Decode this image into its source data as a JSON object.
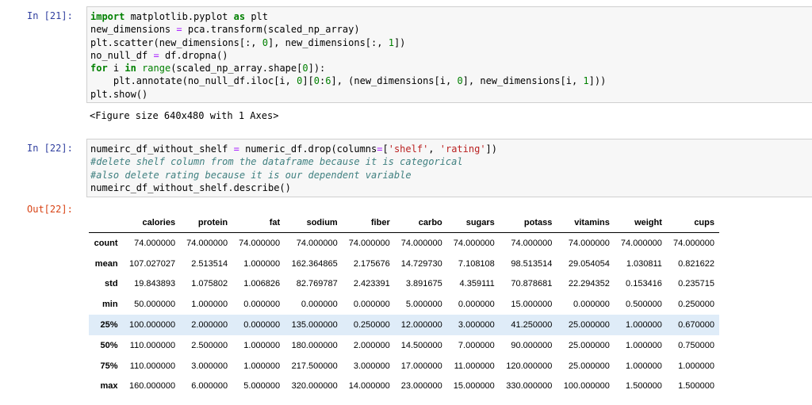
{
  "cells": [
    {
      "prompt": "In [21]:",
      "code": [
        [
          [
            "kw",
            "import"
          ],
          [
            "t",
            " matplotlib.pyplot "
          ],
          [
            "kw",
            "as"
          ],
          [
            "t",
            " plt"
          ]
        ],
        [
          [
            "t",
            "new_dimensions "
          ],
          [
            "op",
            "="
          ],
          [
            "t",
            " pca.transform(scaled_np_array)"
          ]
        ],
        [
          [
            "t",
            "plt.scatter(new_dimensions[:, "
          ],
          [
            "num",
            "0"
          ],
          [
            "t",
            "], new_dimensions[:, "
          ],
          [
            "num",
            "1"
          ],
          [
            "t",
            "])"
          ]
        ],
        [
          [
            "t",
            "no_null_df "
          ],
          [
            "op",
            "="
          ],
          [
            "t",
            " df.dropna()"
          ]
        ],
        [
          [
            "kw",
            "for"
          ],
          [
            "t",
            " i "
          ],
          [
            "kw",
            "in"
          ],
          [
            "t",
            " "
          ],
          [
            "bi",
            "range"
          ],
          [
            "t",
            "(scaled_np_array.shape["
          ],
          [
            "num",
            "0"
          ],
          [
            "t",
            "]):"
          ]
        ],
        [
          [
            "t",
            "    plt.annotate(no_null_df.iloc[i, "
          ],
          [
            "num",
            "0"
          ],
          [
            "t",
            "]["
          ],
          [
            "num",
            "0"
          ],
          [
            "t",
            ":"
          ],
          [
            "num",
            "6"
          ],
          [
            "t",
            "], (new_dimensions[i, "
          ],
          [
            "num",
            "0"
          ],
          [
            "t",
            "], new_dimensions[i, "
          ],
          [
            "num",
            "1"
          ],
          [
            "t",
            "]))"
          ]
        ],
        [
          [
            "t",
            "plt.show()"
          ]
        ]
      ],
      "output": "<Figure size 640x480 with 1 Axes>"
    },
    {
      "prompt": "In [22]:",
      "code": [
        [
          [
            "t",
            "numeirc_df_without_shelf "
          ],
          [
            "op",
            "="
          ],
          [
            "t",
            " numeric_df.drop(columns"
          ],
          [
            "op",
            "="
          ],
          [
            "t",
            "["
          ],
          [
            "str",
            "'shelf'"
          ],
          [
            "t",
            ", "
          ],
          [
            "str",
            "'rating'"
          ],
          [
            "t",
            "])"
          ]
        ],
        [
          [
            "cm",
            "#delete shelf column from the dataframe because it is categorical"
          ]
        ],
        [
          [
            "cm",
            "#also delete rating because it is our dependent variable"
          ]
        ],
        [
          [
            "t",
            "numeirc_df_without_shelf.describe()"
          ]
        ]
      ],
      "out_prompt": "Out[22]:"
    }
  ],
  "table": {
    "columns": [
      "calories",
      "protein",
      "fat",
      "sodium",
      "fiber",
      "carbo",
      "sugars",
      "potass",
      "vitamins",
      "weight",
      "cups"
    ],
    "highlighted_row": 4,
    "rows": [
      {
        "index": "count",
        "values": [
          "74.000000",
          "74.000000",
          "74.000000",
          "74.000000",
          "74.000000",
          "74.000000",
          "74.000000",
          "74.000000",
          "74.000000",
          "74.000000",
          "74.000000"
        ]
      },
      {
        "index": "mean",
        "values": [
          "107.027027",
          "2.513514",
          "1.000000",
          "162.364865",
          "2.175676",
          "14.729730",
          "7.108108",
          "98.513514",
          "29.054054",
          "1.030811",
          "0.821622"
        ]
      },
      {
        "index": "std",
        "values": [
          "19.843893",
          "1.075802",
          "1.006826",
          "82.769787",
          "2.423391",
          "3.891675",
          "4.359111",
          "70.878681",
          "22.294352",
          "0.153416",
          "0.235715"
        ]
      },
      {
        "index": "min",
        "values": [
          "50.000000",
          "1.000000",
          "0.000000",
          "0.000000",
          "0.000000",
          "5.000000",
          "0.000000",
          "15.000000",
          "0.000000",
          "0.500000",
          "0.250000"
        ]
      },
      {
        "index": "25%",
        "values": [
          "100.000000",
          "2.000000",
          "0.000000",
          "135.000000",
          "0.250000",
          "12.000000",
          "3.000000",
          "41.250000",
          "25.000000",
          "1.000000",
          "0.670000"
        ]
      },
      {
        "index": "50%",
        "values": [
          "110.000000",
          "2.500000",
          "1.000000",
          "180.000000",
          "2.000000",
          "14.500000",
          "7.000000",
          "90.000000",
          "25.000000",
          "1.000000",
          "0.750000"
        ]
      },
      {
        "index": "75%",
        "values": [
          "110.000000",
          "3.000000",
          "1.000000",
          "217.500000",
          "3.000000",
          "17.000000",
          "11.000000",
          "120.000000",
          "25.000000",
          "1.000000",
          "1.000000"
        ]
      },
      {
        "index": "max",
        "values": [
          "160.000000",
          "6.000000",
          "5.000000",
          "320.000000",
          "14.000000",
          "23.000000",
          "15.000000",
          "330.000000",
          "100.000000",
          "1.500000",
          "1.500000"
        ]
      }
    ]
  }
}
